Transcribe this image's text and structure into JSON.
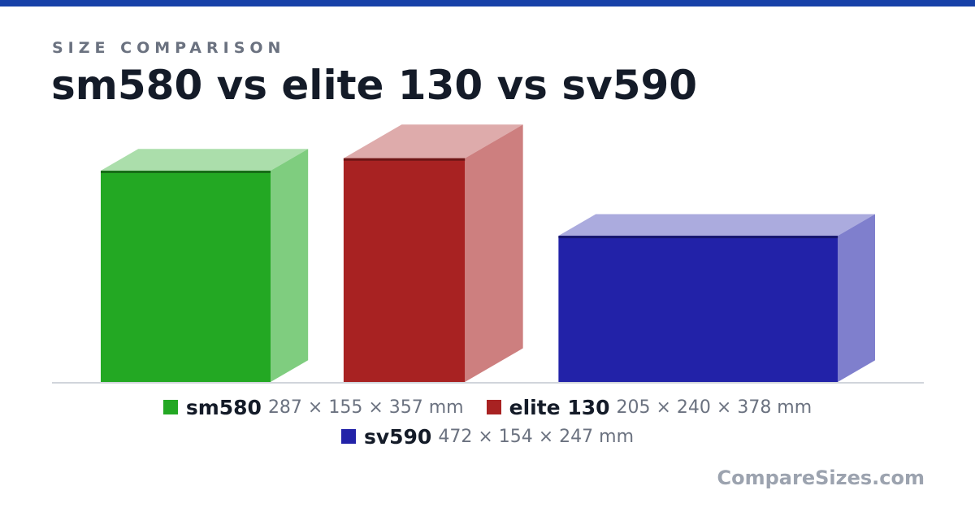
{
  "header": {
    "eyebrow": "SIZE COMPARISON",
    "title": "sm580 vs elite 130 vs sv590"
  },
  "brand": "CompareSizes.com",
  "colors": {
    "accent": "#1741a8",
    "sm580": "#23a823",
    "elite130": "#a82222",
    "sv590": "#2222a8"
  },
  "chart_data": {
    "type": "bar",
    "title": "sm580 vs elite 130 vs sv590",
    "unit": "mm",
    "categories": [
      "sm580",
      "elite 130",
      "sv590"
    ],
    "series": [
      {
        "name": "sm580",
        "dims": [
          287,
          155,
          357
        ],
        "dims_label": "287 × 155 × 357 mm",
        "color": "#23a823"
      },
      {
        "name": "elite 130",
        "dims": [
          205,
          240,
          378
        ],
        "dims_label": "205 × 240 × 378 mm",
        "color": "#a82222"
      },
      {
        "name": "sv590",
        "dims": [
          472,
          154,
          247
        ],
        "dims_label": "472 × 154 × 247 mm",
        "color": "#2222a8"
      }
    ],
    "grid": false,
    "legend": "bottom-center"
  }
}
